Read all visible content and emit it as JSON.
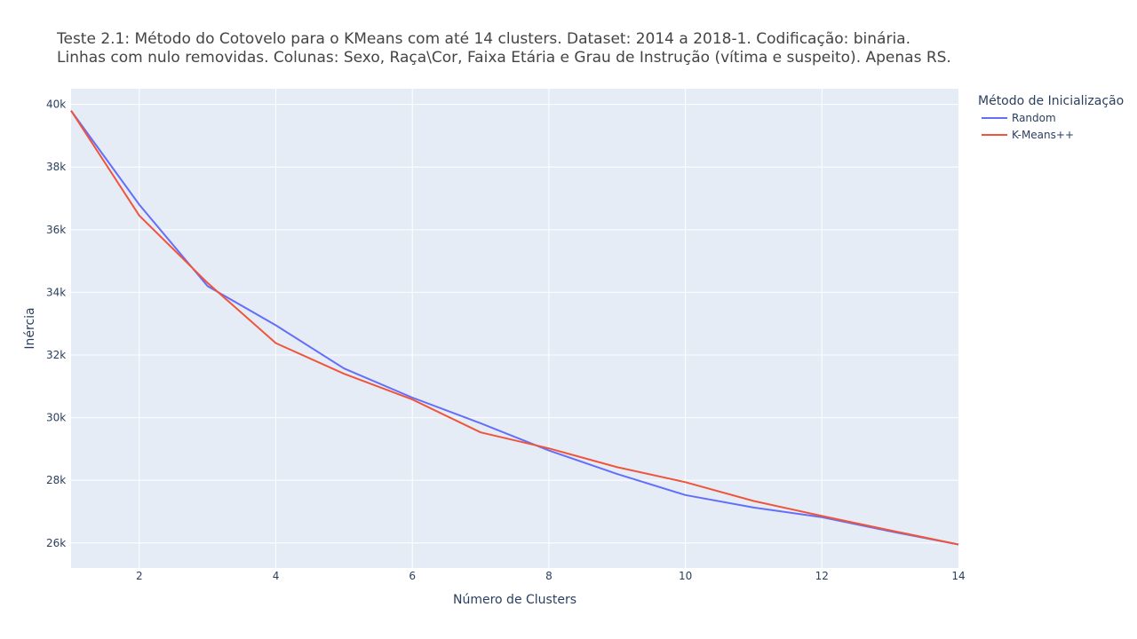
{
  "chart_data": {
    "type": "line",
    "title_lines": [
      "Teste 2.1: Método do Cotovelo para o KMeans com até 14 clusters. Dataset: 2014 a 2018-1. Codificação: binária.",
      "Linhas com nulo removidas. Colunas: Sexo, Raça\\Cor, Faixa Etária e Grau de Instrução (vítima e suspeito). Apenas RS."
    ],
    "xlabel": "Número de Clusters",
    "ylabel": "Inércia",
    "xlim": [
      1,
      14
    ],
    "ylim": [
      25200,
      40500
    ],
    "x_ticks": [
      2,
      4,
      6,
      8,
      10,
      12,
      14
    ],
    "y_ticks": [
      {
        "value": 26000,
        "label": "26k"
      },
      {
        "value": 28000,
        "label": "28k"
      },
      {
        "value": 30000,
        "label": "30k"
      },
      {
        "value": 32000,
        "label": "32k"
      },
      {
        "value": 34000,
        "label": "34k"
      },
      {
        "value": 36000,
        "label": "36k"
      },
      {
        "value": 38000,
        "label": "38k"
      },
      {
        "value": 40000,
        "label": "40k"
      }
    ],
    "grid": true,
    "legend": {
      "title": "Método de Inicialização",
      "placement": "top-right-outside"
    },
    "x": [
      1,
      2,
      3,
      4,
      5,
      6,
      7,
      8,
      9,
      10,
      11,
      12,
      13,
      14
    ],
    "series": [
      {
        "name": "Random",
        "color": "#636efa",
        "values": [
          39800,
          36800,
          34200,
          32950,
          31570,
          30640,
          29820,
          28950,
          28200,
          27530,
          27130,
          26820,
          26370,
          25950
        ]
      },
      {
        "name": "K-Means++",
        "color": "#ef553b",
        "values": [
          39800,
          36450,
          34300,
          32380,
          31400,
          30580,
          29530,
          29020,
          28420,
          27940,
          27340,
          26860,
          26400,
          25950
        ]
      }
    ],
    "colors": {
      "plot_background": "#e5ecf6",
      "grid": "#ffffff",
      "text": "#2a3f5f"
    }
  }
}
